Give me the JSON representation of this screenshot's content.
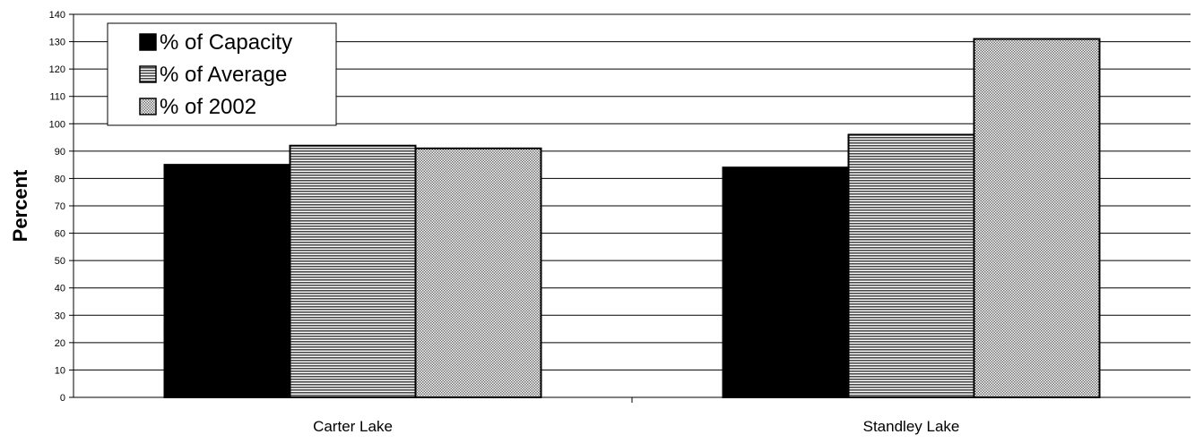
{
  "chart_data": {
    "type": "bar",
    "title": "",
    "xlabel": "",
    "ylabel": "Percent",
    "categories": [
      "Carter Lake",
      "Standley Lake"
    ],
    "series": [
      {
        "name": "% of Capacity",
        "values": [
          85,
          84
        ],
        "fill": "solid",
        "color": "#000000"
      },
      {
        "name": "% of Average",
        "values": [
          92,
          96
        ],
        "fill": "horizontal-stripes",
        "color": "#000000"
      },
      {
        "name": "% of 2002",
        "values": [
          91,
          131
        ],
        "fill": "dotted",
        "color": "#000000"
      }
    ],
    "ylim": [
      0,
      140
    ],
    "yticks": [
      0,
      10,
      20,
      30,
      40,
      50,
      60,
      70,
      80,
      90,
      100,
      110,
      120,
      130,
      140
    ],
    "grid": true,
    "legend_position": "top-left"
  }
}
